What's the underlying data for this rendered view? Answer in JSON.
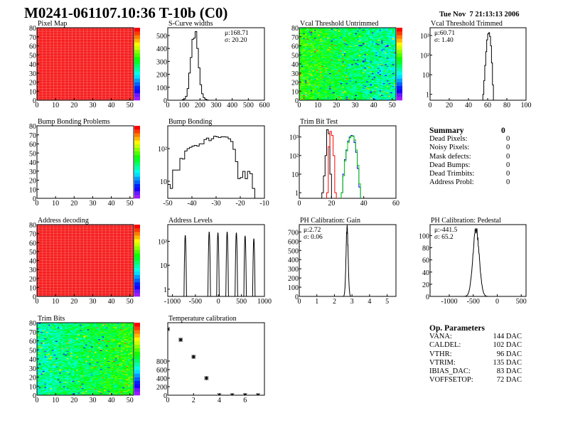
{
  "header": {
    "title": "M0241-061107.10:36 T-10b (C0)",
    "date": "Tue Nov  7 21:13:13 2006"
  },
  "summary": {
    "title": "Summary",
    "total": "0",
    "items": [
      {
        "label": "Dead Pixels:",
        "value": "0"
      },
      {
        "label": "Noisy Pixels:",
        "value": "0"
      },
      {
        "label": "Mask defects:",
        "value": "0"
      },
      {
        "label": "Dead Bumps:",
        "value": "0"
      },
      {
        "label": "Dead Trimbits:",
        "value": "0"
      },
      {
        "label": "Address Probl:",
        "value": "0"
      }
    ]
  },
  "op_parameters": {
    "title": "Op. Parameters",
    "items": [
      {
        "label": "VANA:",
        "value": "144 DAC"
      },
      {
        "label": "CALDEL:",
        "value": "102 DAC"
      },
      {
        "label": "VTHR:",
        "value": "96 DAC"
      },
      {
        "label": "VTRIM:",
        "value": "135 DAC"
      },
      {
        "label": "IBIAS_DAC:",
        "value": "83 DAC"
      },
      {
        "label": "VOFFSETOP:",
        "value": "72 DAC"
      }
    ]
  },
  "chart_data": [
    {
      "id": "pixel-map",
      "type": "heatmap",
      "title": "Pixel Map",
      "xlim": [
        0,
        52
      ],
      "ylim": [
        0,
        80
      ],
      "pattern": "uniform",
      "zlevel": 1.0,
      "xticks": [
        "0",
        "10",
        "20",
        "30",
        "40",
        "50"
      ],
      "yticks": [
        "0",
        "10",
        "20",
        "30",
        "40",
        "50",
        "60",
        "70",
        "80"
      ]
    },
    {
      "id": "s-curve-widths",
      "type": "bar",
      "title": "S-Curve widths",
      "xlim": [
        0,
        600
      ],
      "ylim": [
        0,
        560
      ],
      "log": false,
      "stats": [
        "μ:168.71",
        "σ: 20.20"
      ],
      "binwidth": 10,
      "bins": [
        [
          90,
          5
        ],
        [
          100,
          10
        ],
        [
          110,
          30
        ],
        [
          120,
          90
        ],
        [
          130,
          210
        ],
        [
          140,
          330
        ],
        [
          150,
          470
        ],
        [
          160,
          480
        ],
        [
          170,
          530
        ],
        [
          180,
          400
        ],
        [
          190,
          250
        ],
        [
          200,
          120
        ],
        [
          210,
          50
        ],
        [
          220,
          20
        ],
        [
          230,
          8
        ],
        [
          240,
          3
        ]
      ],
      "xticks": [
        [
          "0",
          0
        ],
        [
          "100",
          100
        ],
        [
          "200",
          200
        ],
        [
          "300",
          300
        ],
        [
          "400",
          400
        ],
        [
          "500",
          500
        ],
        [
          "600",
          600
        ]
      ],
      "yticks": [
        [
          "0",
          0
        ],
        [
          "100",
          100
        ],
        [
          "200",
          200
        ],
        [
          "300",
          300
        ],
        [
          "400",
          400
        ],
        [
          "500",
          500
        ]
      ]
    },
    {
      "id": "vcal-threshold-untrimmed",
      "type": "heatmap",
      "title": "Vcal Threshold Untrimmed",
      "xlim": [
        0,
        52
      ],
      "ylim": [
        0,
        80
      ],
      "pattern": "noise-left-high",
      "zlevel": 0.5,
      "xticks": [
        "0",
        "10",
        "20",
        "30",
        "40",
        "50"
      ],
      "yticks": [
        "0",
        "10",
        "20",
        "30",
        "40",
        "50",
        "60",
        "70",
        "80"
      ]
    },
    {
      "id": "vcal-threshold-trimmed",
      "type": "bar",
      "title": "Vcal Threshold Trimmed",
      "xlim": [
        0,
        100
      ],
      "ylim": [
        0.5,
        2500
      ],
      "log": true,
      "stats": [
        "μ:60.71",
        "σ: 1.40"
      ],
      "binwidth": 1,
      "bins": [
        [
          55,
          1
        ],
        [
          56,
          5
        ],
        [
          57,
          30
        ],
        [
          58,
          150
        ],
        [
          59,
          600
        ],
        [
          60,
          1200
        ],
        [
          61,
          1400
        ],
        [
          62,
          900
        ],
        [
          63,
          300
        ],
        [
          64,
          40
        ],
        [
          65,
          3
        ]
      ],
      "xticks": [
        [
          "0",
          0
        ],
        [
          "20",
          20
        ],
        [
          "40",
          40
        ],
        [
          "60",
          60
        ],
        [
          "80",
          80
        ],
        [
          "100",
          100
        ]
      ],
      "yticks": [
        [
          "1",
          1
        ],
        [
          "10",
          10
        ],
        [
          "10²",
          100
        ],
        [
          "10³",
          1000
        ]
      ]
    },
    {
      "id": "bump-bonding-problems",
      "type": "heatmap",
      "title": "Bump Bonding Problems",
      "xlim": [
        0,
        52
      ],
      "ylim": [
        0,
        80
      ],
      "pattern": "empty",
      "zlevel": 0,
      "xticks": [
        "0",
        "10",
        "20",
        "30",
        "40",
        "50"
      ],
      "yticks": [
        "0",
        "10",
        "20",
        "30",
        "40",
        "50",
        "60",
        "70",
        "80"
      ]
    },
    {
      "id": "bump-bonding",
      "type": "bar",
      "title": "Bump Bonding",
      "xlim": [
        -50,
        -10
      ],
      "ylim": [
        3,
        500
      ],
      "log": true,
      "binwidth": 1,
      "bins": [
        [
          -50,
          8
        ],
        [
          -49,
          6
        ],
        [
          -48,
          22
        ],
        [
          -47,
          22
        ],
        [
          -46,
          22
        ],
        [
          -45,
          50
        ],
        [
          -44,
          48
        ],
        [
          -43,
          85
        ],
        [
          -42,
          100
        ],
        [
          -41,
          110
        ],
        [
          -40,
          120
        ],
        [
          -39,
          125
        ],
        [
          -38,
          120
        ],
        [
          -37,
          140
        ],
        [
          -36,
          140
        ],
        [
          -35,
          190
        ],
        [
          -34,
          210
        ],
        [
          -33,
          175
        ],
        [
          -32,
          200
        ],
        [
          -31,
          240
        ],
        [
          -30,
          230
        ],
        [
          -29,
          220
        ],
        [
          -28,
          230
        ],
        [
          -27,
          230
        ],
        [
          -26,
          225
        ],
        [
          -25,
          200
        ],
        [
          -24,
          165
        ],
        [
          -23,
          95
        ],
        [
          -22,
          40
        ],
        [
          -21,
          12
        ],
        [
          -20,
          13
        ],
        [
          -19,
          20
        ],
        [
          -18,
          12
        ],
        [
          -17,
          20
        ],
        [
          -16,
          17
        ],
        [
          -15,
          6
        ]
      ],
      "xticks": [
        [
          "-50",
          -50
        ],
        [
          "-40",
          -40
        ],
        [
          "-30",
          -30
        ],
        [
          "-20",
          -20
        ],
        [
          "-10",
          -10
        ]
      ],
      "yticks": [
        [
          "10",
          10
        ],
        [
          "10²",
          100
        ]
      ]
    },
    {
      "id": "trim-bit-test",
      "type": "bar",
      "title": "Trim Bit Test",
      "xlim": [
        0,
        60
      ],
      "ylim": [
        0.5,
        4000
      ],
      "log": true,
      "binwidth": 1,
      "series": [
        {
          "color": "#000000",
          "bins": [
            [
              14,
              1
            ],
            [
              15,
              8
            ],
            [
              16,
              100
            ],
            [
              17,
              2500
            ],
            [
              18,
              1500
            ],
            [
              19,
              10
            ]
          ]
        },
        {
          "color": "#ff0000",
          "bins": [
            [
              17,
              1
            ],
            [
              18,
              300
            ],
            [
              19,
              2000
            ],
            [
              20,
              1200
            ],
            [
              21,
              100
            ],
            [
              22,
              1
            ]
          ]
        },
        {
          "color": "#0000ff",
          "bins": [
            [
              26,
              1
            ],
            [
              27,
              10
            ],
            [
              28,
              60
            ],
            [
              29,
              200
            ],
            [
              30,
              600
            ],
            [
              31,
              1000
            ],
            [
              32,
              1200
            ],
            [
              33,
              1100
            ],
            [
              34,
              500
            ],
            [
              35,
              150
            ],
            [
              36,
              20
            ],
            [
              37,
              2
            ]
          ]
        },
        {
          "color": "#00cc00",
          "bins": [
            [
              26,
              1
            ],
            [
              27,
              8
            ],
            [
              28,
              50
            ],
            [
              29,
              180
            ],
            [
              30,
              500
            ],
            [
              31,
              900
            ],
            [
              32,
              1100
            ],
            [
              33,
              1150
            ],
            [
              34,
              700
            ],
            [
              35,
              200
            ],
            [
              36,
              30
            ],
            [
              37,
              3
            ]
          ]
        }
      ],
      "xticks": [
        [
          "0",
          0
        ],
        [
          "20",
          20
        ],
        [
          "40",
          40
        ],
        [
          "60",
          60
        ]
      ],
      "yticks": [
        [
          "1",
          1
        ],
        [
          "10",
          10
        ],
        [
          "10²",
          100
        ],
        [
          "10³",
          1000
        ]
      ]
    },
    {
      "id": "address-decoding",
      "type": "heatmap",
      "title": "Address decoding",
      "xlim": [
        0,
        52
      ],
      "ylim": [
        0,
        80
      ],
      "pattern": "uniform",
      "zlevel": 1.0,
      "xticks": [
        "0",
        "10",
        "20",
        "30",
        "40",
        "50"
      ],
      "yticks": [
        "0",
        "10",
        "20",
        "30",
        "40",
        "50",
        "60",
        "70",
        "80"
      ]
    },
    {
      "id": "address-levels",
      "type": "line",
      "title": "Address Levels",
      "xlim": [
        -1100,
        1000
      ],
      "ylim": [
        0.5,
        500
      ],
      "log": true,
      "peaks": [
        [
          -720,
          180
        ],
        [
          -200,
          250
        ],
        [
          -10,
          230
        ],
        [
          190,
          250
        ],
        [
          390,
          230
        ],
        [
          580,
          170
        ],
        [
          770,
          130
        ]
      ],
      "xticks": [
        [
          "-1000",
          -1000
        ],
        [
          "-500",
          -500
        ],
        [
          "0",
          0
        ],
        [
          "500",
          500
        ],
        [
          "1000",
          1000
        ]
      ],
      "yticks": [
        [
          "1",
          1
        ],
        [
          "10",
          10
        ],
        [
          "10²",
          100
        ]
      ]
    },
    {
      "id": "ph-calibration-gain",
      "type": "line",
      "title": "PH Calibration: Gain",
      "xlim": [
        0,
        5.5
      ],
      "ylim": [
        0,
        780
      ],
      "log": false,
      "stats": [
        "μ:2.72",
        "σ: 0.06"
      ],
      "gauss": {
        "mean": 2.72,
        "sigma": 0.06,
        "peak": 740
      },
      "xticks": [
        [
          "0",
          0
        ],
        [
          "1",
          1
        ],
        [
          "2",
          2
        ],
        [
          "3",
          3
        ],
        [
          "4",
          4
        ],
        [
          "5",
          5
        ]
      ],
      "yticks": [
        [
          "0",
          0
        ],
        [
          "100",
          100
        ],
        [
          "200",
          200
        ],
        [
          "300",
          300
        ],
        [
          "400",
          400
        ],
        [
          "500",
          500
        ],
        [
          "600",
          600
        ],
        [
          "700",
          700
        ]
      ]
    },
    {
      "id": "ph-calibration-pedestal",
      "type": "line",
      "title": "PH Calibration: Pedestal",
      "xlim": [
        -1400,
        600
      ],
      "ylim": [
        0,
        118
      ],
      "log": false,
      "stats": [
        "μ:-441.5",
        "σ: 65.2"
      ],
      "gauss": {
        "mean": -441.5,
        "sigma": 65.2,
        "peak": 110
      },
      "xticks": [
        [
          "-1000",
          -1000
        ],
        [
          "-500",
          -500
        ],
        [
          "0",
          0
        ],
        [
          "500",
          500
        ]
      ],
      "yticks": [
        [
          "0",
          0
        ],
        [
          "20",
          20
        ],
        [
          "40",
          40
        ],
        [
          "60",
          60
        ],
        [
          "80",
          80
        ],
        [
          "100",
          100
        ]
      ]
    },
    {
      "id": "trim-bits",
      "type": "heatmap",
      "title": "Trim Bits",
      "xlim": [
        0,
        52
      ],
      "ylim": [
        0,
        80
      ],
      "pattern": "noise-right-high",
      "zlevel": 0.5,
      "xticks": [
        "0",
        "10",
        "20",
        "30",
        "40",
        "50"
      ],
      "yticks": [
        "0",
        "10",
        "20",
        "30",
        "40",
        "50",
        "60",
        "70",
        "80"
      ]
    },
    {
      "id": "temperature-calibration",
      "type": "scatter",
      "title": "Temperature calibration",
      "xlim": [
        0,
        7.5
      ],
      "ylim": [
        0,
        1700
      ],
      "log": false,
      "points": [
        [
          0,
          1550
        ],
        [
          1,
          1300
        ],
        [
          2,
          900
        ],
        [
          3,
          400
        ],
        [
          4,
          0
        ],
        [
          5,
          0
        ],
        [
          6,
          0
        ],
        [
          7,
          0
        ]
      ],
      "xticks": [
        [
          "0",
          0
        ],
        [
          "2",
          2
        ],
        [
          "4",
          4
        ],
        [
          "6",
          6
        ]
      ],
      "yticks": [
        [
          "0",
          0
        ],
        [
          "200",
          200
        ],
        [
          "400",
          400
        ],
        [
          "600",
          600
        ],
        [
          "800",
          800
        ]
      ]
    }
  ]
}
